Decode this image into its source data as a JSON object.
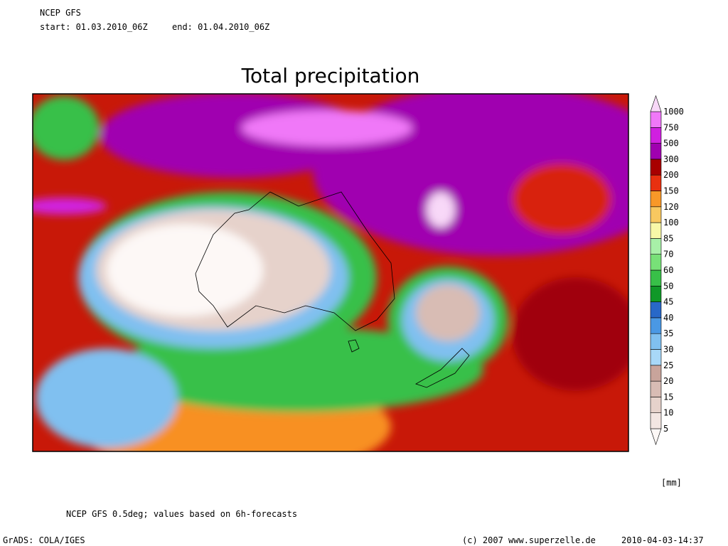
{
  "header": {
    "model": "NCEP GFS",
    "start": "start: 01.03.2010_06Z",
    "end": "end: 01.04.2010_06Z"
  },
  "title": "Total precipitation",
  "legend": {
    "levels": [
      5,
      10,
      15,
      20,
      25,
      30,
      35,
      40,
      45,
      50,
      60,
      70,
      85,
      100,
      120,
      150,
      200,
      300,
      500,
      750,
      1000
    ],
    "colors": [
      "#fdf8f6",
      "#f3e6e2",
      "#e6d2cb",
      "#d8bcb4",
      "#c8a49b",
      "#a8d8f8",
      "#80c0f0",
      "#4a98e4",
      "#2868c8",
      "#109828",
      "#38c048",
      "#78e078",
      "#a8f0a8",
      "#f8f8a8",
      "#f8c860",
      "#f89828",
      "#e83010",
      "#a80000",
      "#a000b0",
      "#d020e0",
      "#f078f8",
      "#f8d8f8"
    ],
    "unit": "[mm]"
  },
  "footer": {
    "note": "NCEP GFS 0.5deg; values based on 6h-forecasts",
    "software": "GrADS: COLA/IGES",
    "copyright": "(c) 2007 www.superzelle.de",
    "timestamp": "2010-04-03-14:37"
  }
}
